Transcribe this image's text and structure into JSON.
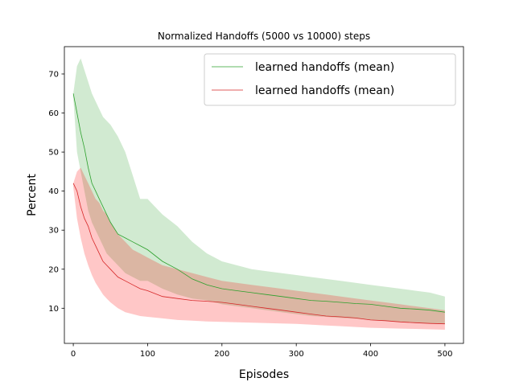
{
  "chart_data": {
    "type": "line",
    "title": "Normalized Handoffs (5000 vs 10000) steps",
    "xlabel": "Episodes",
    "ylabel": "Percent",
    "xlim": [
      -12,
      525
    ],
    "ylim": [
      1,
      77
    ],
    "xticks": [
      0,
      100,
      200,
      300,
      400,
      500
    ],
    "yticks": [
      10,
      20,
      30,
      40,
      50,
      60,
      70
    ],
    "grid": false,
    "legend": {
      "position": "top-right"
    },
    "series": [
      {
        "name": "learned handoffs (mean)",
        "color": "#2ca02c",
        "band_color": "#2ca02c",
        "x": [
          0,
          5,
          10,
          15,
          20,
          25,
          30,
          35,
          40,
          45,
          50,
          60,
          70,
          80,
          90,
          100,
          120,
          140,
          160,
          180,
          200,
          220,
          240,
          260,
          280,
          300,
          320,
          340,
          360,
          380,
          400,
          420,
          440,
          460,
          480,
          500
        ],
        "mean": [
          65,
          60,
          55,
          51,
          46,
          42,
          40,
          38,
          36,
          34,
          32,
          29,
          28,
          27,
          26,
          25,
          22,
          20,
          17.5,
          16,
          15,
          14.5,
          14,
          13.5,
          13,
          12.5,
          12,
          11.8,
          11.5,
          11.2,
          11,
          10.5,
          10,
          9.8,
          9.5,
          9
        ],
        "upper": [
          65,
          72,
          74,
          71,
          68,
          65,
          63,
          61,
          59,
          58,
          57,
          54,
          50,
          44,
          38,
          38,
          34,
          31,
          27,
          24,
          22,
          21,
          20,
          19.5,
          19,
          18.5,
          18,
          17.5,
          17,
          16.5,
          16,
          15.5,
          15,
          14.5,
          14,
          13
        ],
        "lower": [
          64,
          50,
          45,
          40,
          35,
          32,
          30,
          28,
          26,
          24,
          23,
          21,
          19,
          18,
          17,
          17,
          15,
          13.5,
          12.5,
          12,
          11,
          10.5,
          10,
          9.5,
          9,
          8.5,
          8,
          7.8,
          7.5,
          7.3,
          7,
          6.8,
          6.5,
          6.3,
          6.1,
          6
        ]
      },
      {
        "name": "learned handoffs (mean)",
        "color": "#d62728",
        "band_color": "#ff0000",
        "x": [
          0,
          5,
          10,
          15,
          20,
          25,
          30,
          35,
          40,
          45,
          50,
          60,
          70,
          80,
          90,
          100,
          120,
          140,
          160,
          180,
          200,
          220,
          240,
          260,
          280,
          300,
          320,
          340,
          360,
          380,
          400,
          420,
          440,
          460,
          480,
          500
        ],
        "mean": [
          42,
          40,
          36,
          33,
          31,
          28,
          26,
          24,
          22,
          21,
          20,
          18,
          17,
          16,
          15,
          14.5,
          13,
          12.5,
          12,
          11.8,
          11.5,
          11,
          10.5,
          10,
          9.5,
          9,
          8.5,
          8,
          7.8,
          7.5,
          7,
          6.8,
          6.5,
          6.3,
          6.1,
          6
        ],
        "upper": [
          42,
          45,
          46,
          44,
          42,
          40,
          38,
          37,
          35,
          34,
          32,
          29,
          27,
          25,
          24,
          23,
          21,
          20,
          19,
          18,
          17,
          16.5,
          16,
          15.5,
          15,
          14.5,
          14,
          13.5,
          13,
          12.5,
          12,
          11.5,
          11,
          10.5,
          10,
          9.5
        ],
        "lower": [
          41,
          33,
          28,
          24,
          21,
          18.5,
          16.5,
          15,
          13.5,
          12.5,
          11.5,
          10,
          9,
          8.5,
          8,
          7.8,
          7.4,
          7,
          6.8,
          6.6,
          6.5,
          6.4,
          6.3,
          6.2,
          6.1,
          6,
          5.8,
          5.6,
          5.4,
          5.2,
          5,
          4.9,
          4.8,
          4.7,
          4.6,
          4.5
        ]
      }
    ]
  }
}
